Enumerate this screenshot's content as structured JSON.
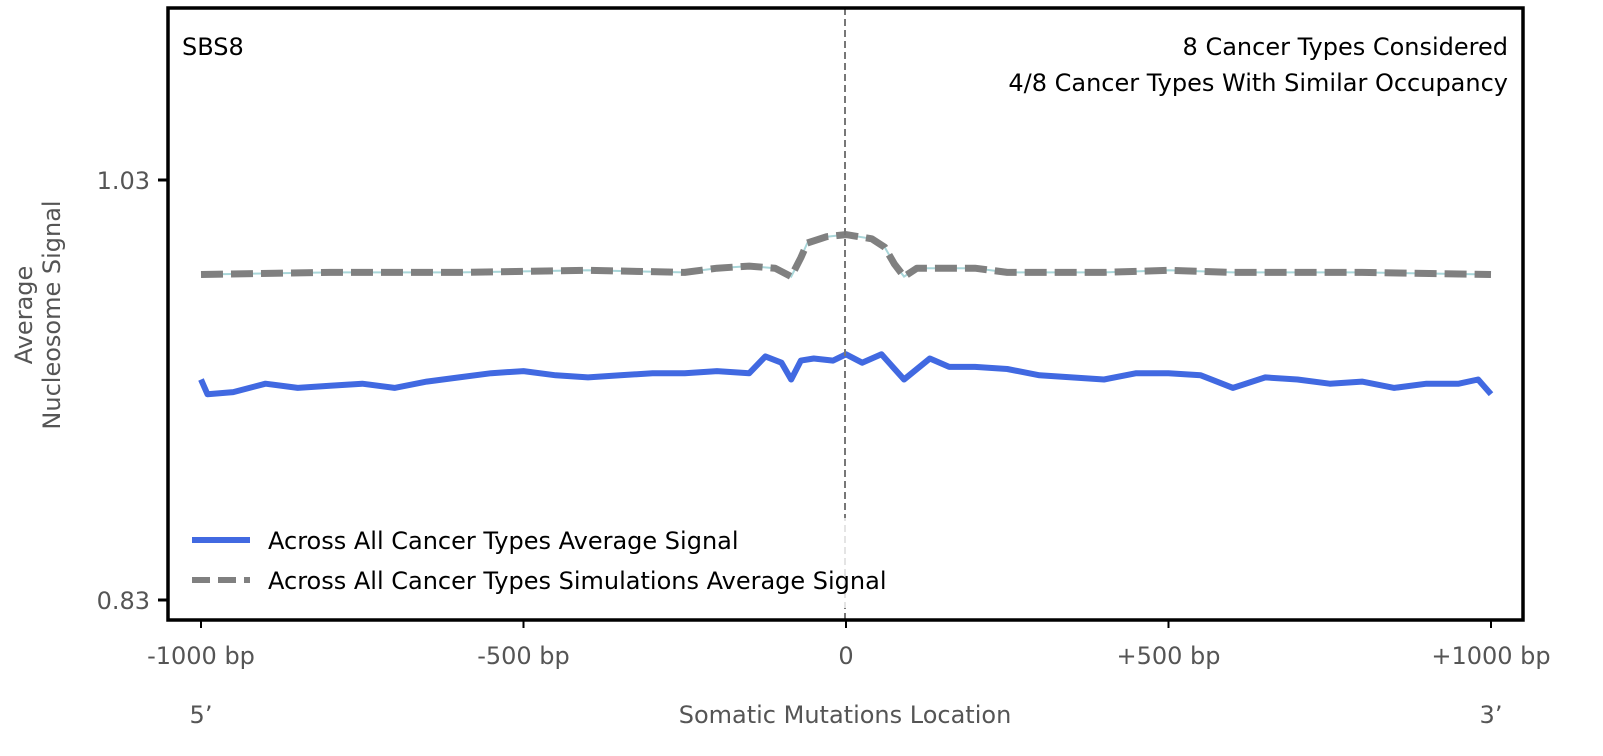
{
  "chart_data": {
    "type": "line",
    "title": "SBS8",
    "annotations": [
      "8 Cancer Types Considered",
      "4/8 Cancer Types With Similar Occupancy"
    ],
    "xlabel": "Somatic Mutations Location",
    "ylabel_lines": [
      "Average",
      "Nucleosome Signal"
    ],
    "xlim": [
      -1000,
      1000
    ],
    "ylim": [
      0.83,
      1.03
    ],
    "x_ticks": [
      {
        "value": -1000,
        "label": "-1000 bp"
      },
      {
        "value": -500,
        "label": "-500 bp"
      },
      {
        "value": 0,
        "label": "0"
      },
      {
        "value": 500,
        "label": "+500 bp"
      },
      {
        "value": 1000,
        "label": "+1000 bp"
      }
    ],
    "y_ticks": [
      {
        "value": 1.03,
        "label": "1.03"
      },
      {
        "value": 0.83,
        "label": "0.83"
      }
    ],
    "end_labels": {
      "left": "5’",
      "right": "3’"
    },
    "grid": false,
    "legend_position": "bottom-left",
    "series": [
      {
        "name": "Across All Cancer Types Average Signal",
        "color": "#4169E1",
        "style": "solid",
        "x": [
          -1000,
          -990,
          -950,
          -900,
          -850,
          -800,
          -750,
          -700,
          -650,
          -600,
          -550,
          -500,
          -450,
          -400,
          -350,
          -300,
          -250,
          -200,
          -150,
          -125,
          -100,
          -85,
          -70,
          -50,
          -20,
          0,
          25,
          55,
          90,
          130,
          160,
          200,
          250,
          300,
          350,
          400,
          450,
          500,
          550,
          600,
          650,
          700,
          750,
          800,
          850,
          900,
          950,
          980,
          1000
        ],
        "y": [
          0.935,
          0.928,
          0.929,
          0.933,
          0.931,
          0.932,
          0.933,
          0.931,
          0.934,
          0.936,
          0.938,
          0.939,
          0.937,
          0.936,
          0.937,
          0.938,
          0.938,
          0.939,
          0.938,
          0.946,
          0.943,
          0.935,
          0.944,
          0.945,
          0.944,
          0.947,
          0.943,
          0.947,
          0.935,
          0.945,
          0.941,
          0.941,
          0.94,
          0.937,
          0.936,
          0.935,
          0.938,
          0.938,
          0.937,
          0.931,
          0.936,
          0.935,
          0.933,
          0.934,
          0.931,
          0.933,
          0.933,
          0.935,
          0.928
        ]
      },
      {
        "name": "Across All Cancer Types Simulations Average Signal",
        "color": "#808080",
        "style": "dashed",
        "x": [
          -1000,
          -800,
          -600,
          -400,
          -250,
          -200,
          -150,
          -110,
          -85,
          -70,
          -60,
          -30,
          0,
          40,
          60,
          75,
          90,
          110,
          150,
          200,
          250,
          400,
          500,
          600,
          800,
          1000
        ],
        "y": [
          0.985,
          0.986,
          0.986,
          0.987,
          0.986,
          0.988,
          0.989,
          0.988,
          0.984,
          0.993,
          1.0,
          1.003,
          1.004,
          1.002,
          0.998,
          0.99,
          0.984,
          0.988,
          0.988,
          0.988,
          0.986,
          0.986,
          0.987,
          0.986,
          0.986,
          0.985
        ]
      }
    ]
  }
}
